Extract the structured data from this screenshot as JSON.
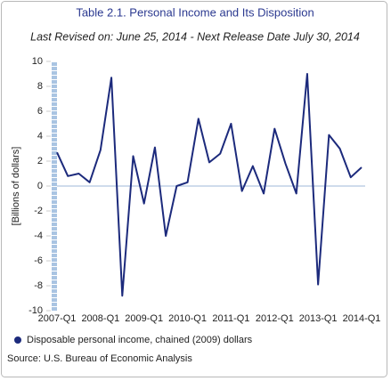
{
  "chart_data": {
    "type": "line",
    "title": "Table 2.1. Personal Income and Its Disposition",
    "subtitle": "Last Revised on: June 25, 2014 - Next Release Date July 30, 2014",
    "y_label": "[Billions of dollars]",
    "source": "Source: U.S. Bureau of Economic Analysis",
    "categories": [
      "2007-Q1",
      null,
      null,
      null,
      "2008-Q1",
      null,
      null,
      null,
      "2009-Q1",
      null,
      null,
      null,
      "2010-Q1",
      null,
      null,
      null,
      "2011-Q1",
      null,
      null,
      null,
      "2012-Q1",
      null,
      null,
      null,
      "2013-Q1",
      null,
      null,
      null,
      "2014-Q1"
    ],
    "series": [
      {
        "name": "Disposable personal income, chained (2009) dollars",
        "color": "#1c2a7c",
        "values": [
          2.7,
          0.8,
          1.0,
          0.3,
          2.9,
          8.7,
          -8.8,
          2.4,
          -1.4,
          3.1,
          -4.0,
          0.0,
          0.3,
          5.4,
          1.9,
          2.6,
          5.0,
          -0.4,
          1.6,
          -0.6,
          4.6,
          1.8,
          -0.6,
          9.0,
          -7.9,
          4.1,
          3.0,
          0.7,
          1.5
        ]
      }
    ],
    "ylim": [
      -10,
      10
    ],
    "yticks": [
      -10,
      -8,
      -6,
      -4,
      -2,
      0,
      2,
      4,
      6,
      8,
      10
    ],
    "zero_line_color": "#9fb8d8"
  }
}
